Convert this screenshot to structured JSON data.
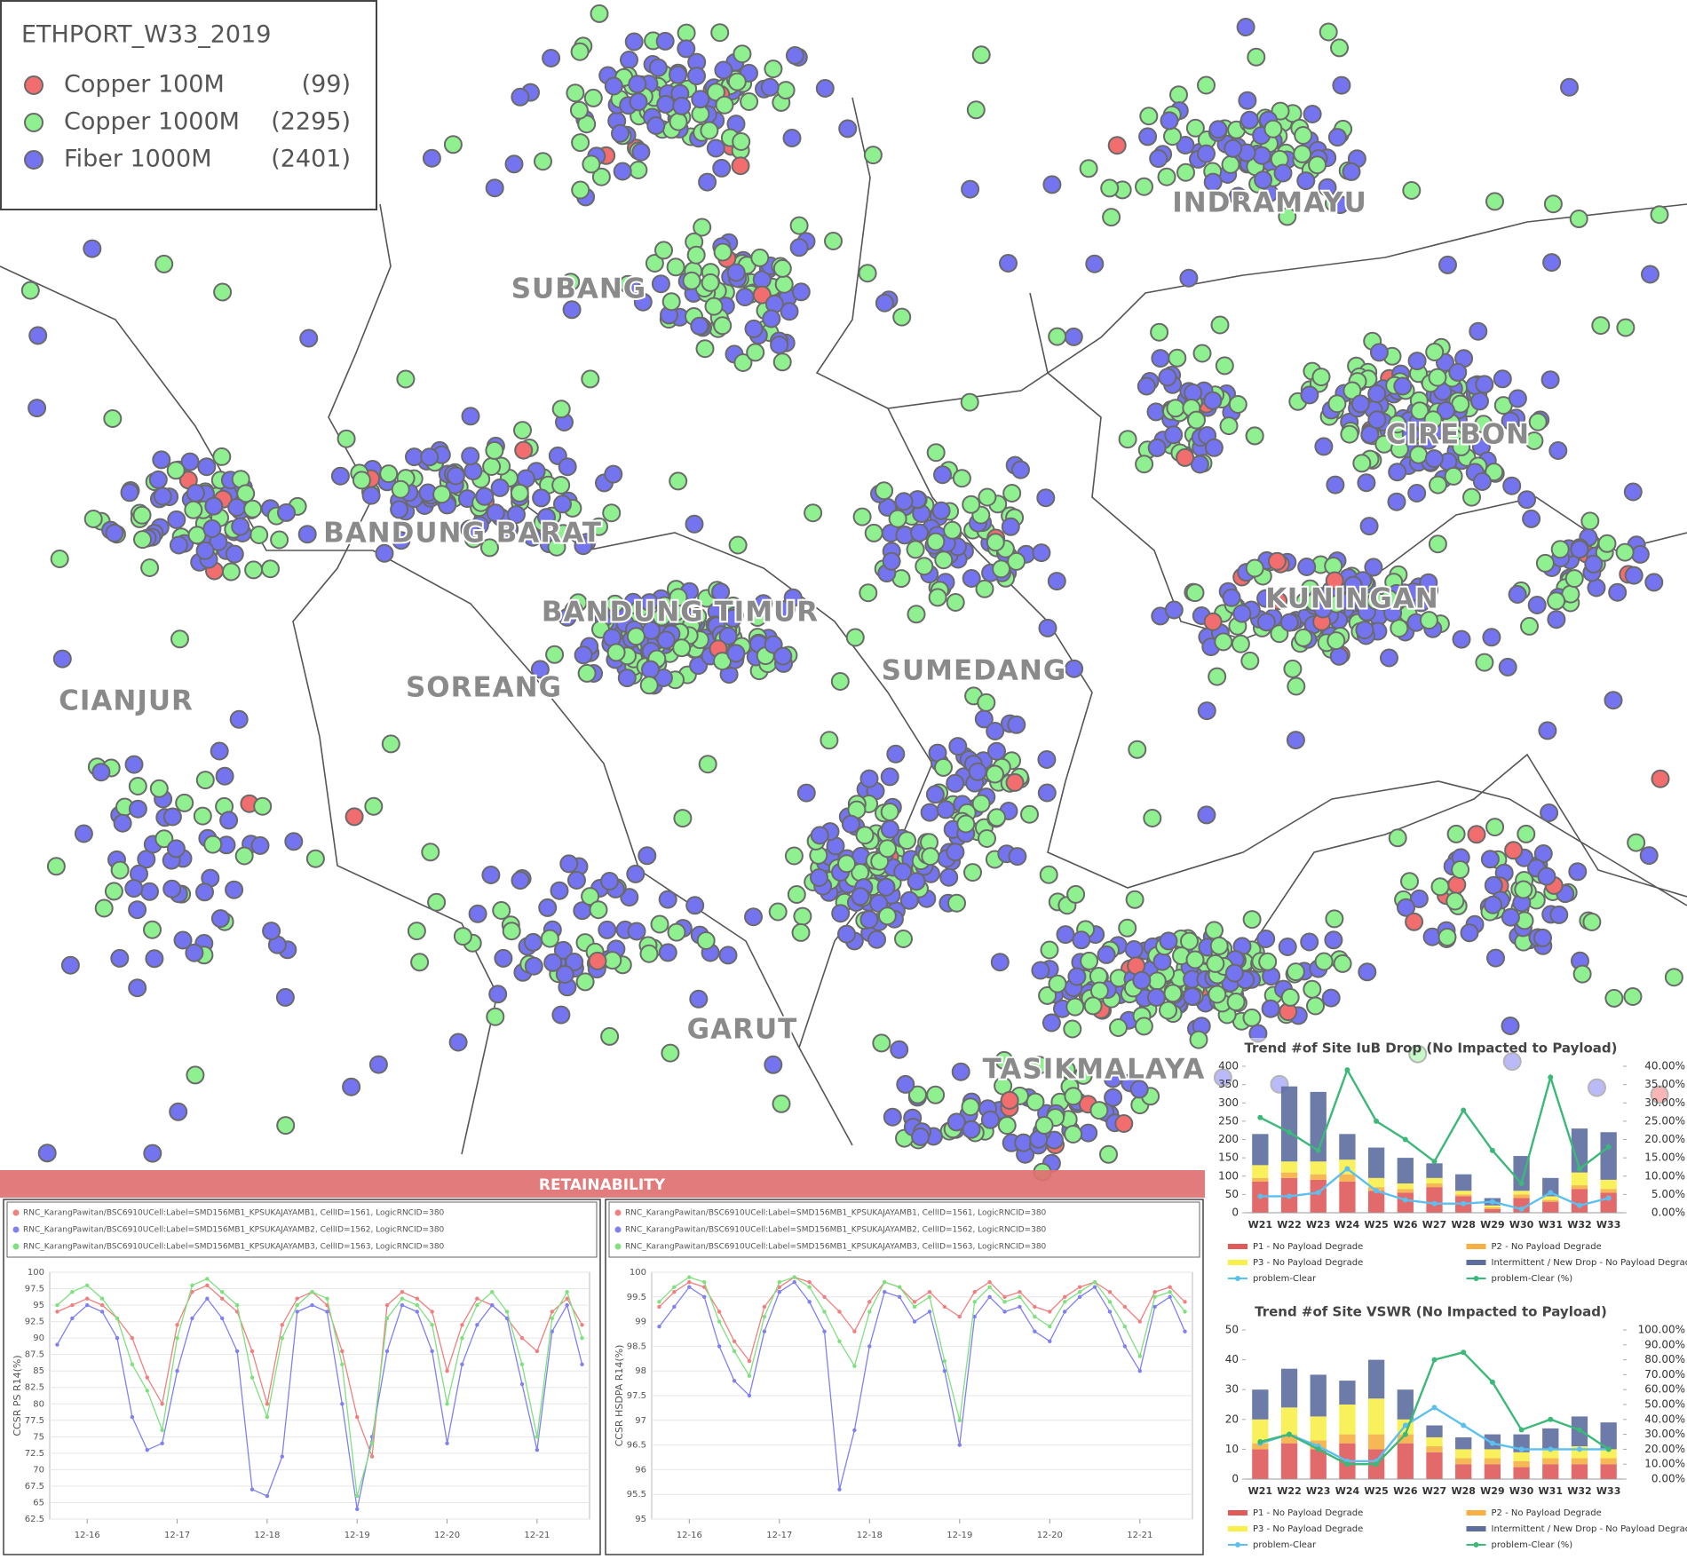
{
  "map": {
    "legend": {
      "title": "ETHPORT_W33_2019",
      "items": [
        {
          "name": "Copper 100M",
          "count": "(99)",
          "color": "#f26d6d"
        },
        {
          "name": "Copper 1000M",
          "count": "(2295)",
          "color": "#8ef08e"
        },
        {
          "name": "Fiber 1000M",
          "count": "(2401)",
          "color": "#7474f0"
        }
      ]
    },
    "regions": [
      "SUBANG",
      "INDRAMAYU",
      "CIREBON",
      "BANDUNG BARAT",
      "BANDUNG TIMUR",
      "KUNINGAN",
      "SUMEDANG",
      "CIANJUR",
      "SOREANG",
      "GARUT",
      "TASIKMALAYA"
    ]
  },
  "banner": "RETAINABILITY",
  "chart_data": [
    {
      "type": "line",
      "ylabel": "CCSR PS R14(%)",
      "categories": [
        null,
        null,
        "12-16",
        null,
        null,
        null,
        null,
        null,
        "12-17",
        null,
        null,
        null,
        null,
        null,
        "12-18",
        null,
        null,
        null,
        null,
        null,
        "12-19",
        null,
        null,
        null,
        null,
        null,
        "12-20",
        null,
        null,
        null,
        null,
        null,
        "12-21",
        null,
        null,
        null
      ],
      "ylim": [
        62.5,
        100
      ],
      "yticks": [
        62.5,
        65,
        67.5,
        70,
        72.5,
        75,
        77.5,
        80,
        82.5,
        85,
        87.5,
        90,
        92.5,
        95,
        97.5,
        100
      ],
      "grid": true,
      "series": [
        {
          "name": "RNC_KarangPawitan/BSC6910UCell:Label=SMD156MB1_KPSUKAJAYAMB1, CellID=1561, LogicRNCID=380",
          "color": "#f08080",
          "values": [
            94,
            95,
            96,
            95,
            93,
            90,
            84,
            80,
            92,
            97,
            98,
            96,
            94,
            88,
            80,
            92,
            96,
            97,
            95,
            88,
            78,
            72,
            95,
            97,
            96,
            94,
            85,
            92,
            96,
            95,
            93,
            90,
            88,
            94,
            96,
            92
          ]
        },
        {
          "name": "RNC_KarangPawitan/BSC6910UCell:Label=SMD156MB1_KPSUKAJAYAMB2, CellID=1562, LogicRNCID=380",
          "color": "#8080f0",
          "values": [
            89,
            93,
            95,
            94,
            90,
            78,
            73,
            74,
            85,
            93,
            96,
            93,
            88,
            67,
            66,
            72,
            94,
            95,
            94,
            80,
            64,
            75,
            88,
            95,
            94,
            88,
            74,
            86,
            92,
            95,
            93,
            83,
            73,
            91,
            95,
            86
          ]
        },
        {
          "name": "RNC_KarangPawitan/BSC6910UCell:Label=SMD156MB1_KPSUKAJAYAMB3, CellID=1563, LogicRNCID=380",
          "color": "#80e080",
          "values": [
            95,
            97,
            98,
            96,
            93,
            86,
            82,
            76,
            90,
            98,
            99,
            97,
            95,
            84,
            78,
            90,
            95,
            97,
            96,
            86,
            66,
            74,
            93,
            96,
            95,
            92,
            80,
            90,
            95,
            97,
            94,
            86,
            75,
            93,
            97,
            90
          ]
        }
      ]
    },
    {
      "type": "line",
      "ylabel": "CCSR HSDPA R14(%)",
      "categories": [
        null,
        null,
        "12-16",
        null,
        null,
        null,
        null,
        null,
        "12-17",
        null,
        null,
        null,
        null,
        null,
        "12-18",
        null,
        null,
        null,
        null,
        null,
        "12-19",
        null,
        null,
        null,
        null,
        null,
        "12-20",
        null,
        null,
        null,
        null,
        null,
        "12-21",
        null,
        null,
        null
      ],
      "ylim": [
        95,
        100
      ],
      "yticks": [
        95,
        95.5,
        96,
        96.5,
        97,
        97.5,
        98,
        98.5,
        99,
        99.5,
        100
      ],
      "grid": true,
      "series": [
        {
          "name": "RNC_KarangPawitan/BSC6910UCell:Label=SMD156MB1_KPSUKAJAYAMB1, CellID=1561, LogicRNCID=380",
          "color": "#f08080",
          "values": [
            99.3,
            99.6,
            99.8,
            99.7,
            99.2,
            98.6,
            98.2,
            99.3,
            99.7,
            99.9,
            99.8,
            99.5,
            99.2,
            98.8,
            99.4,
            99.8,
            99.7,
            99.4,
            99.6,
            99.3,
            99.1,
            99.6,
            99.8,
            99.5,
            99.6,
            99.3,
            99.2,
            99.5,
            99.7,
            99.8,
            99.6,
            99.3,
            99.0,
            99.6,
            99.7,
            99.4
          ]
        },
        {
          "name": "RNC_KarangPawitan/BSC6910UCell:Label=SMD156MB1_KPSUKAJAYAMB2, CellID=1562, LogicRNCID=380",
          "color": "#8080f0",
          "values": [
            98.9,
            99.3,
            99.7,
            99.5,
            98.5,
            97.8,
            97.5,
            98.8,
            99.6,
            99.8,
            99.4,
            98.8,
            95.6,
            96.8,
            98.5,
            99.6,
            99.5,
            99.0,
            99.2,
            98.0,
            96.5,
            99.1,
            99.5,
            99.2,
            99.3,
            98.8,
            98.6,
            99.2,
            99.5,
            99.7,
            99.2,
            98.5,
            98.0,
            99.3,
            99.5,
            98.8
          ]
        },
        {
          "name": "RNC_KarangPawitan/BSC6910UCell:Label=SMD156MB1_KPSUKAJAYAMB3, CellID=1563, LogicRNCID=380",
          "color": "#80e080",
          "values": [
            99.4,
            99.7,
            99.9,
            99.8,
            99.0,
            98.4,
            97.9,
            99.1,
            99.8,
            99.9,
            99.7,
            99.2,
            98.6,
            98.1,
            99.2,
            99.8,
            99.7,
            99.3,
            99.5,
            98.2,
            97.0,
            99.4,
            99.7,
            99.4,
            99.5,
            99.1,
            98.9,
            99.4,
            99.6,
            99.8,
            99.4,
            98.9,
            98.3,
            99.5,
            99.6,
            99.2
          ]
        }
      ]
    },
    {
      "type": "combo",
      "title": "Trend #of Site IuB Drop (No Impacted to Payload)",
      "categories": [
        "W21",
        "W22",
        "W23",
        "W24",
        "W25",
        "W26",
        "W27",
        "W28",
        "W29",
        "W30",
        "W31",
        "W32",
        "W33"
      ],
      "ylim": [
        0,
        400
      ],
      "yticks": [
        0,
        50,
        100,
        150,
        200,
        250,
        300,
        350,
        400
      ],
      "y2lim": [
        0,
        40
      ],
      "y2ticks": [
        {
          "value": 0,
          "label": "0.00%"
        },
        {
          "value": 5,
          "label": "5.00%"
        },
        {
          "value": 10,
          "label": "10.00%"
        },
        {
          "value": 15,
          "label": "15.00%"
        },
        {
          "value": 20,
          "label": "20.00%"
        },
        {
          "value": 25,
          "label": "25.00%"
        },
        {
          "value": 30,
          "label": "30.00%"
        },
        {
          "value": 35,
          "label": "35.00%"
        },
        {
          "value": 40,
          "label": "40.00%"
        }
      ],
      "series": [
        {
          "name": "P1 - No Payload Degrade",
          "color": "#e05a5a",
          "kind": "bar",
          "values": [
            85,
            95,
            90,
            85,
            60,
            55,
            70,
            45,
            10,
            40,
            30,
            65,
            55
          ]
        },
        {
          "name": "P2 - No Payload Degrade",
          "color": "#f5b041",
          "kind": "bar",
          "values": [
            10,
            15,
            15,
            20,
            10,
            10,
            10,
            5,
            5,
            10,
            5,
            10,
            10
          ]
        },
        {
          "name": "P3 - No Payload Degrade",
          "color": "#f7f04a",
          "kind": "bar",
          "values": [
            35,
            30,
            35,
            40,
            25,
            15,
            15,
            10,
            5,
            10,
            10,
            35,
            25
          ]
        },
        {
          "name": "Intermittent / New Drop - No Payload Degrade",
          "color": "#5d6d9e",
          "kind": "bar",
          "values": [
            85,
            205,
            190,
            70,
            83,
            70,
            40,
            45,
            20,
            95,
            50,
            120,
            130
          ]
        },
        {
          "name": "problem-Clear",
          "color": "#5bc0f0",
          "kind": "line",
          "values": [
            45,
            45,
            55,
            120,
            60,
            35,
            25,
            25,
            30,
            10,
            55,
            20,
            40
          ]
        },
        {
          "name": "problem-Clear (%)",
          "color": "#3cb878",
          "kind": "line",
          "axis": "y2",
          "values": [
            26,
            22,
            17,
            39,
            25,
            20,
            14,
            28,
            17,
            8,
            37,
            12,
            18
          ]
        }
      ]
    },
    {
      "type": "combo",
      "title": "Trend #of Site VSWR (No Impacted to Payload)",
      "categories": [
        "W21",
        "W22",
        "W23",
        "W24",
        "W25",
        "W26",
        "W27",
        "W28",
        "W29",
        "W30",
        "W31",
        "W32",
        "W33"
      ],
      "ylim": [
        0,
        50
      ],
      "yticks": [
        0,
        10,
        20,
        30,
        40,
        50
      ],
      "y2lim": [
        0,
        100
      ],
      "y2ticks": [
        {
          "value": 0,
          "label": "0.00%"
        },
        {
          "value": 10,
          "label": "10.00%"
        },
        {
          "value": 20,
          "label": "20.00%"
        },
        {
          "value": 30,
          "label": "30.00%"
        },
        {
          "value": 40,
          "label": "40.00%"
        },
        {
          "value": 50,
          "label": "50.00%"
        },
        {
          "value": 60,
          "label": "60.00%"
        },
        {
          "value": 70,
          "label": "70.00%"
        },
        {
          "value": 80,
          "label": "80.00%"
        },
        {
          "value": 90,
          "label": "90.00%"
        },
        {
          "value": 100,
          "label": "100.00%"
        }
      ],
      "series": [
        {
          "name": "P1 - No Payload Degrade",
          "color": "#e05a5a",
          "kind": "bar",
          "values": [
            10,
            12,
            10,
            12,
            10,
            12,
            9,
            5,
            5,
            4,
            5,
            5,
            5
          ]
        },
        {
          "name": "P2 - No Payload Degrade",
          "color": "#f5b041",
          "kind": "bar",
          "values": [
            2,
            3,
            3,
            3,
            5,
            3,
            2,
            2,
            2,
            2,
            2,
            2,
            2
          ]
        },
        {
          "name": "P3 - No Payload Degrade",
          "color": "#f7f04a",
          "kind": "bar",
          "values": [
            8,
            9,
            8,
            10,
            12,
            5,
            3,
            3,
            3,
            3,
            3,
            4,
            3
          ]
        },
        {
          "name": "Intermittent / New Drop - No Payload Degrade",
          "color": "#5d6d9e",
          "kind": "bar",
          "values": [
            10,
            13,
            14,
            8,
            13,
            10,
            4,
            4,
            5,
            6,
            7,
            10,
            9
          ]
        },
        {
          "name": "problem-Clear",
          "color": "#5bc0f0",
          "kind": "line",
          "values": [
            12,
            15,
            11,
            6,
            6,
            18,
            24,
            18,
            12,
            10,
            10,
            10,
            10
          ]
        },
        {
          "name": "problem-Clear (%)",
          "color": "#3cb878",
          "kind": "line",
          "axis": "y2",
          "values": [
            25,
            30,
            20,
            10,
            10,
            30,
            80,
            85,
            65,
            33,
            40,
            33,
            20
          ]
        }
      ]
    }
  ]
}
